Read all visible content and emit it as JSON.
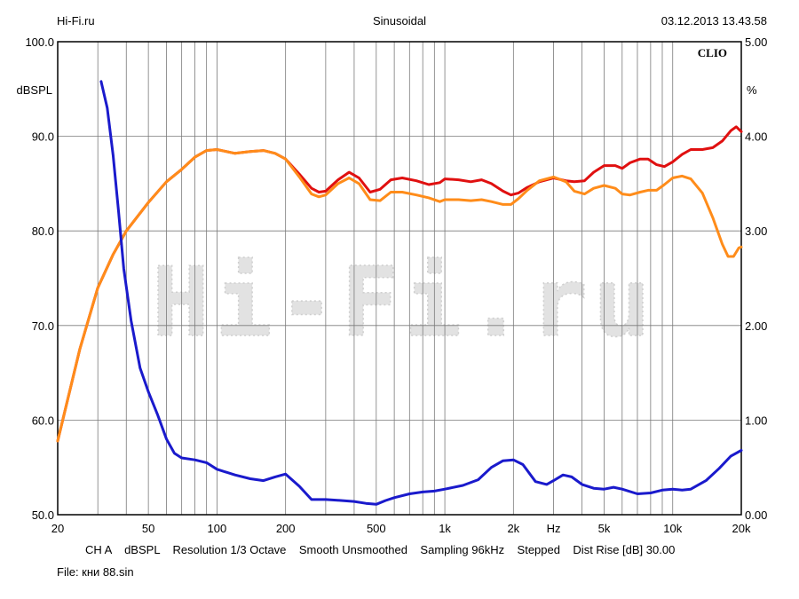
{
  "header": {
    "left": "Hi-Fi.ru",
    "center": "Sinusoidal",
    "right": "03.12.2013 13.43.58"
  },
  "chart_data": {
    "type": "line",
    "brand_label": "CLIO",
    "watermark": "Hi-Fi.ru",
    "ylabel_left": "dBSPL",
    "ylabel_right": "%",
    "xscale": "log",
    "xlim": [
      20,
      20000
    ],
    "ylim_left": [
      50,
      100
    ],
    "ylim_right": [
      0,
      5
    ],
    "grid": true,
    "x_ticks": [
      {
        "value": 20,
        "label": "20"
      },
      {
        "value": 50,
        "label": "50"
      },
      {
        "value": 100,
        "label": "100"
      },
      {
        "value": 200,
        "label": "200"
      },
      {
        "value": 500,
        "label": "500"
      },
      {
        "value": 1000,
        "label": "1k"
      },
      {
        "value": 2000,
        "label": "2k"
      },
      {
        "value": 3000,
        "label": "Hz"
      },
      {
        "value": 5000,
        "label": "5k"
      },
      {
        "value": 10000,
        "label": "10k"
      },
      {
        "value": 20000,
        "label": "20k"
      }
    ],
    "y_ticks_left": [
      {
        "value": 100,
        "label": "100.0"
      },
      {
        "value": 90,
        "label": "90.0"
      },
      {
        "value": 80,
        "label": "80.0"
      },
      {
        "value": 70,
        "label": "70.0"
      },
      {
        "value": 60,
        "label": "60.0"
      },
      {
        "value": 50,
        "label": "50.0"
      }
    ],
    "y_ticks_right": [
      {
        "value": 5,
        "label": "5.00"
      },
      {
        "value": 4,
        "label": "4.00"
      },
      {
        "value": 3,
        "label": "3.00"
      },
      {
        "value": 2,
        "label": "2.00"
      },
      {
        "value": 1,
        "label": "1.00"
      },
      {
        "value": 0,
        "label": "0.00"
      }
    ],
    "series": [
      {
        "color": "#e01010",
        "axis": "left",
        "points": [
          [
            20,
            57.8
          ],
          [
            25,
            67.5
          ],
          [
            30,
            74.0
          ],
          [
            35,
            77.5
          ],
          [
            40,
            80.0
          ],
          [
            50,
            83.0
          ],
          [
            60,
            85.2
          ],
          [
            70,
            86.5
          ],
          [
            80,
            87.8
          ],
          [
            90,
            88.5
          ],
          [
            100,
            88.6
          ],
          [
            120,
            88.2
          ],
          [
            140,
            88.4
          ],
          [
            160,
            88.5
          ],
          [
            180,
            88.2
          ],
          [
            200,
            87.6
          ],
          [
            230,
            86.0
          ],
          [
            260,
            84.5
          ],
          [
            280,
            84.1
          ],
          [
            300,
            84.2
          ],
          [
            340,
            85.4
          ],
          [
            380,
            86.2
          ],
          [
            420,
            85.6
          ],
          [
            470,
            84.1
          ],
          [
            520,
            84.4
          ],
          [
            580,
            85.4
          ],
          [
            650,
            85.6
          ],
          [
            750,
            85.3
          ],
          [
            850,
            84.9
          ],
          [
            950,
            85.1
          ],
          [
            1000,
            85.5
          ],
          [
            1150,
            85.4
          ],
          [
            1300,
            85.2
          ],
          [
            1450,
            85.4
          ],
          [
            1600,
            85.0
          ],
          [
            1800,
            84.2
          ],
          [
            1950,
            83.8
          ],
          [
            2100,
            84.0
          ],
          [
            2300,
            84.6
          ],
          [
            2600,
            85.2
          ],
          [
            3000,
            85.6
          ],
          [
            3400,
            85.3
          ],
          [
            3700,
            85.2
          ],
          [
            4100,
            85.3
          ],
          [
            4500,
            86.2
          ],
          [
            5000,
            86.9
          ],
          [
            5600,
            86.9
          ],
          [
            6000,
            86.6
          ],
          [
            6500,
            87.2
          ],
          [
            7200,
            87.6
          ],
          [
            7800,
            87.6
          ],
          [
            8500,
            87.0
          ],
          [
            9200,
            86.8
          ],
          [
            10000,
            87.3
          ],
          [
            11000,
            88.1
          ],
          [
            12000,
            88.6
          ],
          [
            13500,
            88.6
          ],
          [
            15000,
            88.8
          ],
          [
            16500,
            89.5
          ],
          [
            18000,
            90.6
          ],
          [
            19000,
            91.0
          ],
          [
            20000,
            90.5
          ]
        ]
      },
      {
        "color": "#ff8c1a",
        "axis": "left",
        "points": [
          [
            20,
            57.8
          ],
          [
            25,
            67.5
          ],
          [
            30,
            74.0
          ],
          [
            35,
            77.5
          ],
          [
            40,
            80.0
          ],
          [
            50,
            83.0
          ],
          [
            60,
            85.2
          ],
          [
            70,
            86.5
          ],
          [
            80,
            87.8
          ],
          [
            90,
            88.5
          ],
          [
            100,
            88.6
          ],
          [
            120,
            88.2
          ],
          [
            140,
            88.4
          ],
          [
            160,
            88.5
          ],
          [
            180,
            88.2
          ],
          [
            200,
            87.6
          ],
          [
            230,
            85.7
          ],
          [
            260,
            83.9
          ],
          [
            280,
            83.6
          ],
          [
            300,
            83.8
          ],
          [
            340,
            85.0
          ],
          [
            380,
            85.6
          ],
          [
            420,
            85.0
          ],
          [
            470,
            83.3
          ],
          [
            520,
            83.2
          ],
          [
            580,
            84.1
          ],
          [
            650,
            84.1
          ],
          [
            750,
            83.8
          ],
          [
            850,
            83.5
          ],
          [
            950,
            83.1
          ],
          [
            1000,
            83.3
          ],
          [
            1150,
            83.3
          ],
          [
            1300,
            83.2
          ],
          [
            1450,
            83.3
          ],
          [
            1600,
            83.1
          ],
          [
            1800,
            82.8
          ],
          [
            1950,
            82.8
          ],
          [
            2100,
            83.4
          ],
          [
            2300,
            84.3
          ],
          [
            2600,
            85.3
          ],
          [
            3000,
            85.7
          ],
          [
            3400,
            85.2
          ],
          [
            3700,
            84.2
          ],
          [
            4100,
            83.9
          ],
          [
            4500,
            84.5
          ],
          [
            5000,
            84.8
          ],
          [
            5600,
            84.5
          ],
          [
            6000,
            83.9
          ],
          [
            6500,
            83.8
          ],
          [
            7200,
            84.1
          ],
          [
            7800,
            84.3
          ],
          [
            8500,
            84.3
          ],
          [
            9200,
            84.9
          ],
          [
            10000,
            85.6
          ],
          [
            11000,
            85.8
          ],
          [
            12000,
            85.5
          ],
          [
            13500,
            84.0
          ],
          [
            15000,
            81.4
          ],
          [
            16500,
            78.6
          ],
          [
            17500,
            77.3
          ],
          [
            18500,
            77.3
          ],
          [
            19500,
            78.2
          ],
          [
            20000,
            78.3
          ]
        ]
      },
      {
        "color": "#1a1acc",
        "axis": "right",
        "points": [
          [
            31,
            4.58
          ],
          [
            33,
            4.3
          ],
          [
            35,
            3.8
          ],
          [
            37,
            3.2
          ],
          [
            39,
            2.6
          ],
          [
            42,
            2.05
          ],
          [
            46,
            1.55
          ],
          [
            50,
            1.3
          ],
          [
            55,
            1.05
          ],
          [
            60,
            0.8
          ],
          [
            65,
            0.65
          ],
          [
            70,
            0.6
          ],
          [
            80,
            0.58
          ],
          [
            90,
            0.55
          ],
          [
            100,
            0.48
          ],
          [
            120,
            0.42
          ],
          [
            140,
            0.38
          ],
          [
            160,
            0.36
          ],
          [
            180,
            0.4
          ],
          [
            200,
            0.43
          ],
          [
            230,
            0.3
          ],
          [
            260,
            0.16
          ],
          [
            300,
            0.16
          ],
          [
            350,
            0.15
          ],
          [
            400,
            0.14
          ],
          [
            450,
            0.12
          ],
          [
            500,
            0.11
          ],
          [
            550,
            0.15
          ],
          [
            600,
            0.18
          ],
          [
            700,
            0.22
          ],
          [
            800,
            0.24
          ],
          [
            900,
            0.25
          ],
          [
            1000,
            0.27
          ],
          [
            1200,
            0.31
          ],
          [
            1400,
            0.37
          ],
          [
            1600,
            0.5
          ],
          [
            1800,
            0.57
          ],
          [
            2000,
            0.58
          ],
          [
            2200,
            0.53
          ],
          [
            2500,
            0.35
          ],
          [
            2800,
            0.32
          ],
          [
            3000,
            0.36
          ],
          [
            3300,
            0.42
          ],
          [
            3600,
            0.4
          ],
          [
            4000,
            0.32
          ],
          [
            4500,
            0.28
          ],
          [
            5000,
            0.27
          ],
          [
            5500,
            0.29
          ],
          [
            6000,
            0.27
          ],
          [
            7000,
            0.22
          ],
          [
            8000,
            0.23
          ],
          [
            9000,
            0.26
          ],
          [
            10000,
            0.27
          ],
          [
            11000,
            0.26
          ],
          [
            12000,
            0.27
          ],
          [
            14000,
            0.36
          ],
          [
            16000,
            0.49
          ],
          [
            18000,
            0.62
          ],
          [
            20000,
            0.68
          ]
        ]
      }
    ]
  },
  "footer": {
    "info": "CH A    dBSPL    Resolution 1/3 Octave    Smooth Unsmoothed    Sampling 96kHz    Stepped    Dist Rise [dB] 30.00",
    "file": "File: кни 88.sin"
  }
}
